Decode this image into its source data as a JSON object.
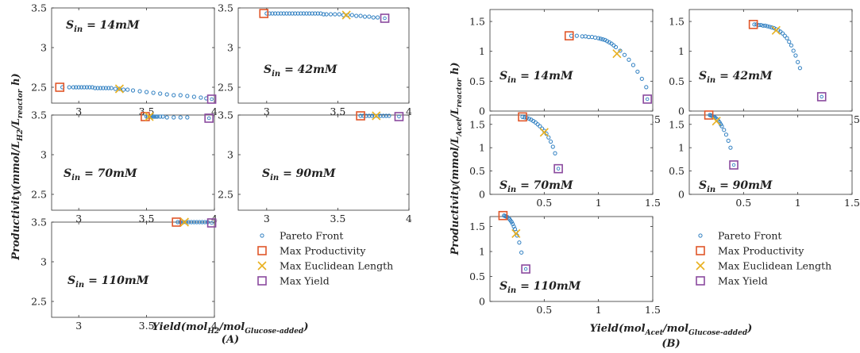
{
  "colors": {
    "pareto": "#2f7fc1",
    "max_productivity": "#e0572a",
    "max_euclidean": "#e8b020",
    "max_yield": "#8a4a9e"
  },
  "panel_labels": [
    "(A)",
    "(B)"
  ],
  "legend": {
    "entries": [
      {
        "key": "pareto",
        "label": "Pareto Front"
      },
      {
        "key": "max_productivity",
        "label": "Max Productivity"
      },
      {
        "key": "max_euclidean",
        "label": "Max Euclidean Length"
      },
      {
        "key": "max_yield",
        "label": "Max Yield"
      }
    ]
  },
  "chart_data": [
    {
      "group": "A",
      "type": "scatter",
      "ylabel": "Productivity(mmol/L_H2/L_reactor h)",
      "xlabel": "Yield(mol_H2/mol_Glucose-added)",
      "subplots": [
        {
          "id": "A1",
          "annotation": "S_in = 14mM",
          "xlim": [
            2.8,
            4.0
          ],
          "ylim": [
            2.3,
            3.5
          ],
          "xticks": [
            3,
            3.5,
            4
          ],
          "yticks": [
            2.5,
            3,
            3.5
          ],
          "pareto": {
            "x": [
              2.88,
              2.93,
              2.96,
              2.98,
              3.0,
              3.02,
              3.04,
              3.06,
              3.08,
              3.1,
              3.12,
              3.14,
              3.16,
              3.18,
              3.2,
              3.22,
              3.24,
              3.27,
              3.3,
              3.33,
              3.36,
              3.4,
              3.45,
              3.5,
              3.55,
              3.6,
              3.65,
              3.7,
              3.75,
              3.8,
              3.85,
              3.9,
              3.94
            ],
            "y": [
              2.5,
              2.5,
              2.5,
              2.5,
              2.5,
              2.5,
              2.5,
              2.5,
              2.5,
              2.5,
              2.49,
              2.49,
              2.49,
              2.49,
              2.49,
              2.49,
              2.49,
              2.48,
              2.48,
              2.47,
              2.47,
              2.46,
              2.45,
              2.44,
              2.43,
              2.42,
              2.41,
              2.4,
              2.4,
              2.39,
              2.38,
              2.37,
              2.36
            ]
          },
          "max_productivity": [
            2.86,
            2.5
          ],
          "max_euclidean": [
            3.3,
            2.48
          ],
          "max_yield": [
            3.98,
            2.35
          ]
        },
        {
          "id": "A2",
          "annotation": "S_in = 42mM",
          "xlim": [
            2.8,
            4.0
          ],
          "ylim": [
            2.3,
            3.5
          ],
          "xticks": [
            3,
            3.5,
            4
          ],
          "yticks": [
            2.5,
            3,
            3.5
          ],
          "pareto": {
            "x": [
              3.0,
              3.02,
              3.04,
              3.06,
              3.08,
              3.1,
              3.12,
              3.14,
              3.16,
              3.18,
              3.2,
              3.22,
              3.24,
              3.26,
              3.28,
              3.3,
              3.32,
              3.34,
              3.36,
              3.38,
              3.4,
              3.42,
              3.45,
              3.48,
              3.51,
              3.54,
              3.57,
              3.6,
              3.63,
              3.66,
              3.69,
              3.72,
              3.75,
              3.78
            ],
            "y": [
              3.43,
              3.43,
              3.43,
              3.43,
              3.43,
              3.43,
              3.43,
              3.43,
              3.43,
              3.43,
              3.43,
              3.43,
              3.43,
              3.43,
              3.43,
              3.43,
              3.43,
              3.43,
              3.43,
              3.43,
              3.42,
              3.42,
              3.42,
              3.42,
              3.42,
              3.41,
              3.41,
              3.41,
              3.4,
              3.4,
              3.39,
              3.39,
              3.38,
              3.38
            ]
          },
          "max_productivity": [
            2.98,
            3.43
          ],
          "max_euclidean": [
            3.56,
            3.41
          ],
          "max_yield": [
            3.83,
            3.37
          ]
        },
        {
          "id": "A3",
          "annotation": "S_in = 70mM",
          "xlim": [
            2.8,
            4.0
          ],
          "ylim": [
            2.3,
            3.5
          ],
          "xticks": [
            3,
            3.5,
            4
          ],
          "yticks": [
            2.5,
            3,
            3.5
          ],
          "pareto": {
            "x": [
              3.5,
              3.51,
              3.52,
              3.53,
              3.54,
              3.55,
              3.56,
              3.57,
              3.58,
              3.6,
              3.62,
              3.65,
              3.7,
              3.75,
              3.8
            ],
            "y": [
              3.48,
              3.48,
              3.48,
              3.48,
              3.48,
              3.48,
              3.48,
              3.48,
              3.48,
              3.48,
              3.48,
              3.47,
              3.47,
              3.47,
              3.47
            ]
          },
          "max_productivity": [
            3.49,
            3.48
          ],
          "max_euclidean": [
            3.52,
            3.48
          ],
          "max_yield": [
            3.96,
            3.46
          ]
        },
        {
          "id": "A4",
          "annotation": "S_in = 90mM",
          "xlim": [
            2.8,
            4.0
          ],
          "ylim": [
            2.3,
            3.5
          ],
          "xticks": [
            3,
            3.5,
            4
          ],
          "yticks": [
            2.5,
            3,
            3.5
          ],
          "pareto": {
            "x": [
              3.66,
              3.68,
              3.7,
              3.72,
              3.74,
              3.76,
              3.78,
              3.8,
              3.82,
              3.84,
              3.86
            ],
            "y": [
              3.49,
              3.49,
              3.49,
              3.49,
              3.49,
              3.49,
              3.49,
              3.49,
              3.49,
              3.49,
              3.49
            ]
          },
          "max_productivity": [
            3.66,
            3.49
          ],
          "max_euclidean": [
            3.77,
            3.49
          ],
          "max_yield": [
            3.93,
            3.48
          ]
        },
        {
          "id": "A5",
          "annotation": "S_in = 110mM",
          "xlim": [
            2.8,
            4.0
          ],
          "ylim": [
            2.3,
            3.5
          ],
          "xticks": [
            3,
            3.5,
            4
          ],
          "yticks": [
            2.5,
            3,
            3.5
          ],
          "pareto": {
            "x": [
              3.73,
              3.75,
              3.77,
              3.79,
              3.81,
              3.83,
              3.85,
              3.87,
              3.89,
              3.91,
              3.93,
              3.95
            ],
            "y": [
              3.5,
              3.5,
              3.5,
              3.5,
              3.5,
              3.5,
              3.5,
              3.5,
              3.5,
              3.5,
              3.5,
              3.5
            ]
          },
          "max_productivity": [
            3.72,
            3.5
          ],
          "max_euclidean": [
            3.78,
            3.5
          ],
          "max_yield": [
            3.98,
            3.49
          ]
        }
      ]
    },
    {
      "group": "B",
      "type": "scatter",
      "ylabel": "Productivity(mmol/L_Acet/L_reactor h)",
      "xlabel": "Yield(mol_Acet/mol_Glucose-added)",
      "subplots": [
        {
          "id": "B1",
          "annotation": "S_in = 14mM",
          "xlim": [
            0,
            1.5
          ],
          "ylim": [
            0,
            1.7
          ],
          "xticks": [
            0.5,
            1,
            1.5
          ],
          "yticks": [
            0,
            0.5,
            1,
            1.5
          ],
          "pareto": {
            "x": [
              0.75,
              0.8,
              0.85,
              0.88,
              0.91,
              0.94,
              0.97,
              1.0,
              1.02,
              1.04,
              1.06,
              1.08,
              1.1,
              1.12,
              1.14,
              1.16,
              1.2,
              1.24,
              1.28,
              1.32,
              1.36,
              1.4,
              1.44
            ],
            "y": [
              1.26,
              1.26,
              1.25,
              1.25,
              1.24,
              1.24,
              1.23,
              1.22,
              1.21,
              1.2,
              1.19,
              1.17,
              1.15,
              1.13,
              1.1,
              1.07,
              1.01,
              0.94,
              0.86,
              0.77,
              0.66,
              0.54,
              0.4
            ]
          },
          "max_productivity": [
            0.73,
            1.26
          ],
          "max_euclidean": [
            1.17,
            0.96
          ],
          "max_yield": [
            1.45,
            0.2
          ]
        },
        {
          "id": "B2",
          "annotation": "S_in = 42mM",
          "xlim": [
            0,
            1.5
          ],
          "ylim": [
            0,
            1.7
          ],
          "xticks": [
            0.5,
            1,
            1.5
          ],
          "yticks": [
            0,
            0.5,
            1,
            1.5
          ],
          "pareto": {
            "x": [
              0.6,
              0.62,
              0.64,
              0.66,
              0.68,
              0.7,
              0.72,
              0.74,
              0.76,
              0.78,
              0.8,
              0.82,
              0.84,
              0.86,
              0.88,
              0.9,
              0.92,
              0.94,
              0.96,
              0.98,
              1.0,
              1.02
            ],
            "y": [
              1.45,
              1.45,
              1.44,
              1.44,
              1.43,
              1.43,
              1.42,
              1.41,
              1.4,
              1.39,
              1.37,
              1.35,
              1.33,
              1.3,
              1.26,
              1.22,
              1.16,
              1.1,
              1.01,
              0.93,
              0.82,
              0.72
            ]
          },
          "max_productivity": [
            0.59,
            1.45
          ],
          "max_euclidean": [
            0.8,
            1.35
          ],
          "max_yield": [
            1.22,
            0.24
          ]
        },
        {
          "id": "B3",
          "annotation": "S_in = 70mM",
          "xlim": [
            0,
            1.5
          ],
          "ylim": [
            0,
            1.7
          ],
          "xticks": [
            0.5,
            1,
            1.5
          ],
          "yticks": [
            0,
            0.5,
            1,
            1.5
          ],
          "pareto": {
            "x": [
              0.3,
              0.32,
              0.34,
              0.36,
              0.38,
              0.4,
              0.42,
              0.44,
              0.46,
              0.48,
              0.5,
              0.52,
              0.54,
              0.56,
              0.58,
              0.6
            ],
            "y": [
              1.66,
              1.65,
              1.64,
              1.62,
              1.6,
              1.57,
              1.54,
              1.5,
              1.46,
              1.41,
              1.36,
              1.3,
              1.22,
              1.13,
              1.02,
              0.88
            ]
          },
          "max_productivity": [
            0.3,
            1.66
          ],
          "max_euclidean": [
            0.5,
            1.33
          ],
          "max_yield": [
            0.63,
            0.55
          ]
        },
        {
          "id": "B4",
          "annotation": "S_in = 90mM",
          "xlim": [
            0,
            1.5
          ],
          "ylim": [
            0,
            1.7
          ],
          "xticks": [
            0.5,
            1,
            1.5
          ],
          "yticks": [
            0,
            0.5,
            1,
            1.5
          ],
          "pareto": {
            "x": [
              0.19,
              0.2,
              0.21,
              0.22,
              0.23,
              0.24,
              0.25,
              0.26,
              0.27,
              0.28,
              0.29,
              0.3,
              0.32,
              0.34,
              0.36,
              0.38
            ],
            "y": [
              1.7,
              1.69,
              1.68,
              1.67,
              1.66,
              1.64,
              1.62,
              1.6,
              1.57,
              1.54,
              1.5,
              1.46,
              1.38,
              1.28,
              1.15,
              1.0
            ]
          },
          "max_productivity": [
            0.18,
            1.7
          ],
          "max_euclidean": [
            0.25,
            1.57
          ],
          "max_yield": [
            0.41,
            0.63
          ]
        },
        {
          "id": "B5",
          "annotation": "S_in = 110mM",
          "xlim": [
            0,
            1.5
          ],
          "ylim": [
            0,
            1.7
          ],
          "xticks": [
            0.5,
            1,
            1.5
          ],
          "yticks": [
            0,
            0.5,
            1,
            1.5
          ],
          "pareto": {
            "x": [
              0.13,
              0.14,
              0.15,
              0.16,
              0.17,
              0.18,
              0.19,
              0.2,
              0.21,
              0.22,
              0.23,
              0.24,
              0.25,
              0.27,
              0.29
            ],
            "y": [
              1.72,
              1.71,
              1.7,
              1.69,
              1.67,
              1.65,
              1.62,
              1.59,
              1.55,
              1.5,
              1.45,
              1.39,
              1.32,
              1.18,
              0.98
            ]
          },
          "max_productivity": [
            0.12,
            1.72
          ],
          "max_euclidean": [
            0.24,
            1.36
          ],
          "max_yield": [
            0.33,
            0.65
          ]
        }
      ]
    }
  ]
}
